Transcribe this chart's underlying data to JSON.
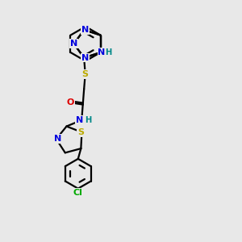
{
  "bg_color": "#e8e8e8",
  "bond_color": "#000000",
  "lw": 1.6,
  "atom_colors": {
    "N": "#0000dd",
    "S": "#bbaa00",
    "O": "#dd0000",
    "Cl": "#00aa00",
    "NH_teal": "#008888"
  },
  "label_fs": 8.0,
  "fig_size": [
    3.0,
    3.0
  ],
  "dpi": 100
}
